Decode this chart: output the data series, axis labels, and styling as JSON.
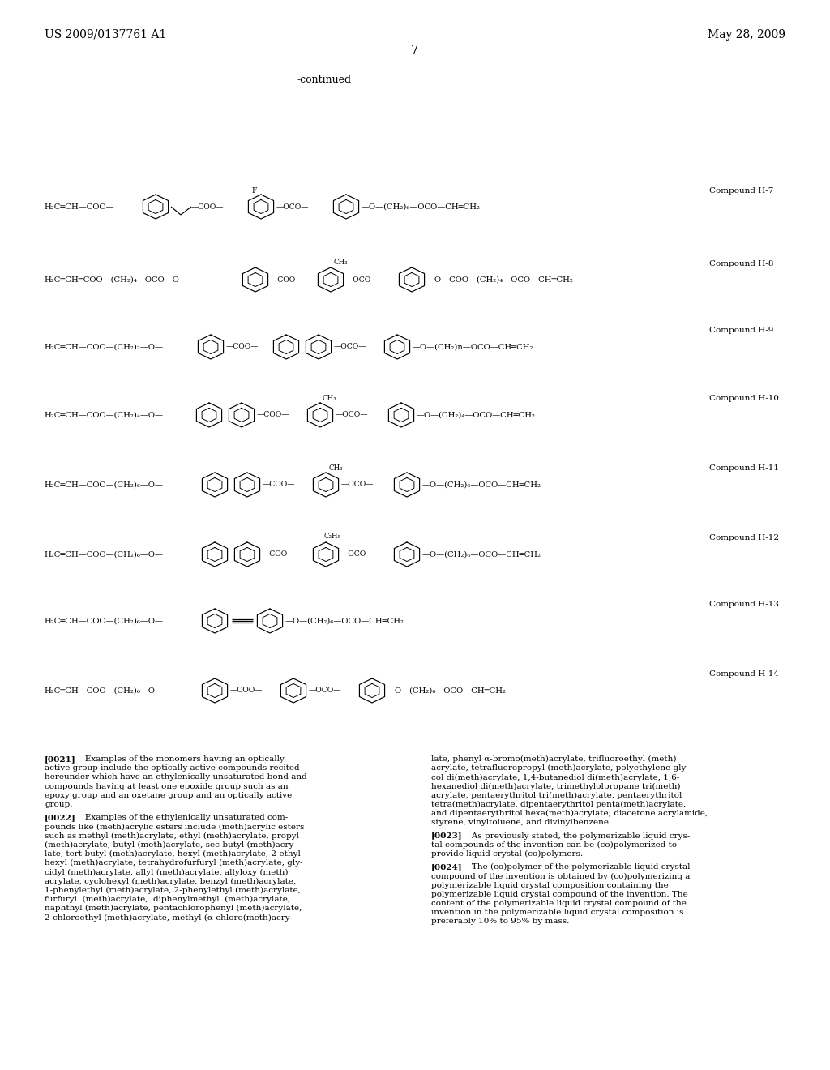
{
  "header_left": "US 2009/0137761 A1",
  "header_right": "May 28, 2009",
  "page_number": "7",
  "continued_label": "-continued",
  "bg": "#ffffff"
}
